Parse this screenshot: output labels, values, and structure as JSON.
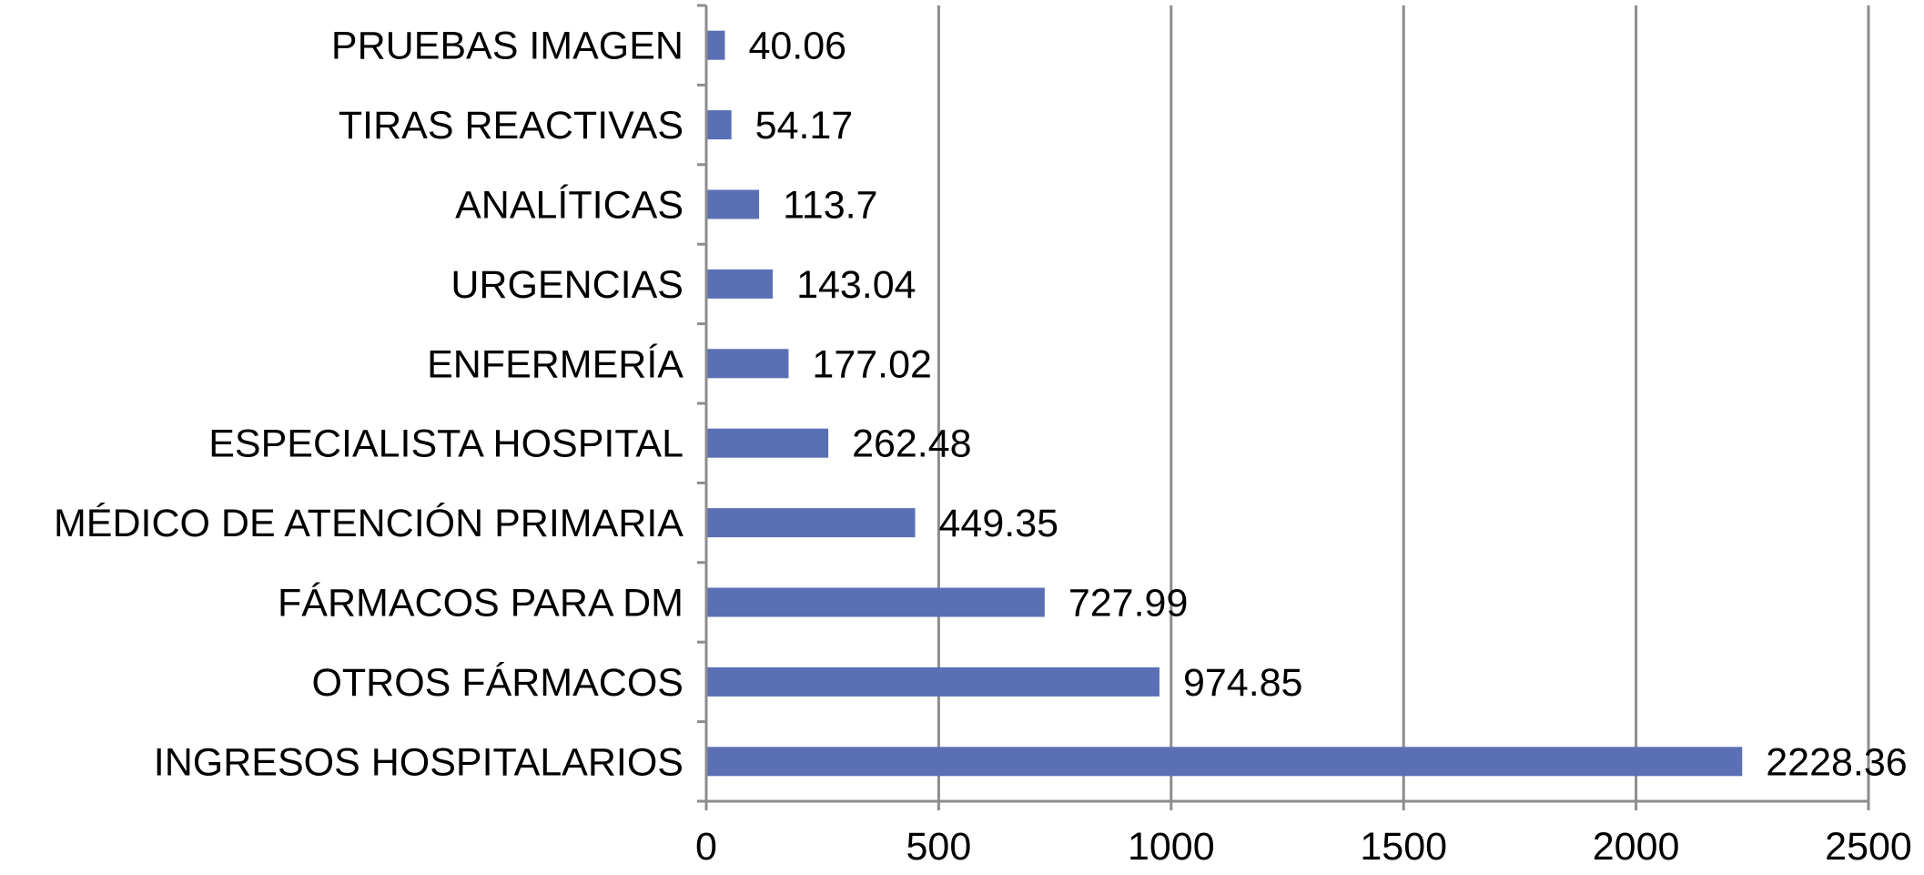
{
  "chart_data": {
    "type": "bar",
    "orientation": "horizontal",
    "categories": [
      "PRUEBAS IMAGEN",
      "TIRAS REACTIVAS",
      "ANALÍTICAS",
      "URGENCIAS",
      "ENFERMERÍA",
      "ESPECIALISTA HOSPITAL",
      "MÉDICO DE ATENCIÓN PRIMARIA",
      "FÁRMACOS PARA DM",
      "OTROS FÁRMACOS",
      "INGRESOS HOSPITALARIOS"
    ],
    "values": [
      40.06,
      54.17,
      113.7,
      143.04,
      177.02,
      262.48,
      449.35,
      727.99,
      974.85,
      2228.36
    ],
    "data_labels": [
      "40.06",
      "54.17",
      "113.7",
      "143.04",
      "177.02",
      "262.48",
      "449.35",
      "727.99",
      "974.85",
      "2228.36"
    ],
    "xlim": [
      0,
      2500
    ],
    "x_ticks": [
      0,
      500,
      1000,
      1500,
      2000,
      2500
    ],
    "x_tick_labels": [
      "0",
      "500",
      "1000",
      "1500",
      "2000",
      "2500"
    ],
    "grid": "vertical major gridlines",
    "legend": "none",
    "title": "",
    "xlabel": "",
    "ylabel": "",
    "colors": {
      "bar": "#5b6fb4",
      "grid": "#8c8c8c",
      "axis": "#8c8c8c",
      "text": "#000000"
    }
  }
}
